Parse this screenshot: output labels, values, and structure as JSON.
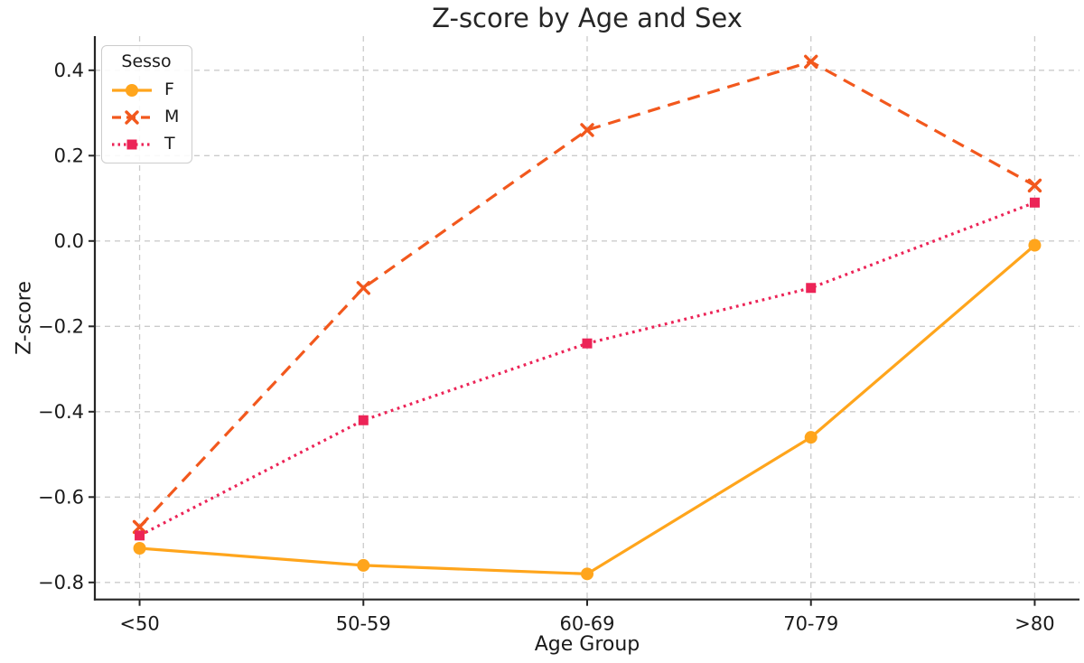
{
  "title": "Z-score by Age and Sex",
  "colors": {
    "grid": "#cbcbcb",
    "axis": "#262626",
    "text": "#1a1a1a",
    "background": "#ffffff",
    "legend_border": "#cccccc"
  },
  "chart_data": {
    "type": "line",
    "title": "Z-score by Age and Sex",
    "xlabel": "Age Group",
    "ylabel": "Z-score",
    "categories": [
      "<50",
      "50-59",
      "60-69",
      "70-79",
      ">80"
    ],
    "series": [
      {
        "name": "F",
        "values": [
          -0.72,
          -0.76,
          -0.78,
          -0.46,
          -0.01
        ],
        "color": "#FFA51C",
        "line_style": "solid",
        "marker": "circle"
      },
      {
        "name": "M",
        "values": [
          -0.67,
          -0.11,
          0.26,
          0.42,
          0.13
        ],
        "color": "#F2581D",
        "line_style": "dashed",
        "marker": "x"
      },
      {
        "name": "T",
        "values": [
          -0.69,
          -0.42,
          -0.24,
          -0.11,
          0.09
        ],
        "color": "#EC2457",
        "line_style": "dotted",
        "marker": "square"
      }
    ],
    "legend_title": "Sesso",
    "legend_position": "upper left",
    "y_ticks": [
      0.4,
      0.2,
      0.0,
      -0.2,
      -0.4,
      -0.6,
      -0.8
    ],
    "ylim": [
      -0.84,
      0.48
    ],
    "grid": true,
    "grid_style": "dashed"
  }
}
